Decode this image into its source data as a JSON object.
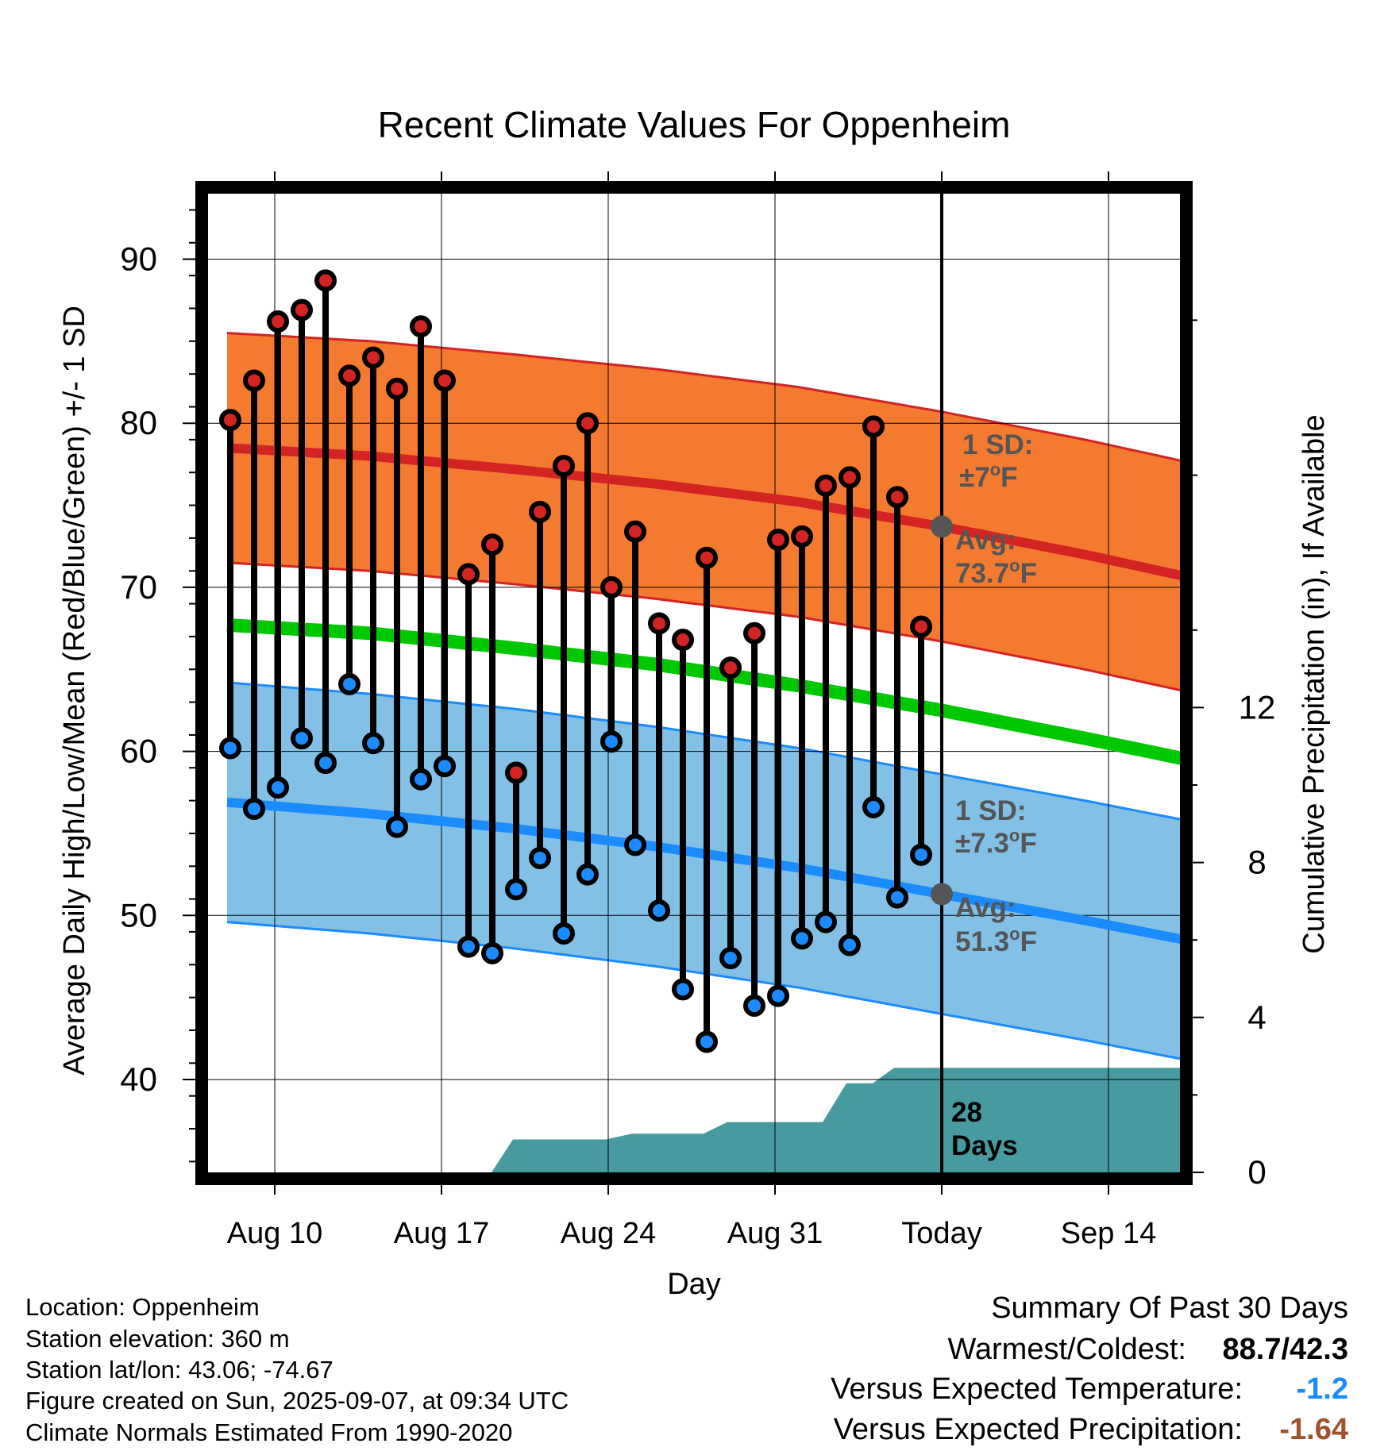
{
  "chart_data": {
    "type": "line",
    "title": "Recent Climate Values For Oppenheim",
    "xlabel": "Day",
    "ylabel": "Average Daily High/Low/Mean (Red/Blue/Green) +/- 1 SD",
    "y2label": "Cumulative Precipitation (in), If Available",
    "x_range_day": [
      -30,
      12
    ],
    "ylim": [
      34.5,
      94
    ],
    "y2lim": [
      0,
      25
    ],
    "grid": true,
    "x_ticks": [
      {
        "day": -28,
        "label": "Aug 10"
      },
      {
        "day": -21,
        "label": "Aug 17"
      },
      {
        "day": -14,
        "label": "Aug 24"
      },
      {
        "day": -7,
        "label": "Aug 31"
      },
      {
        "day": 0,
        "label": "Today"
      },
      {
        "day": 7,
        "label": "Sep 14"
      }
    ],
    "y_ticks": [
      40,
      50,
      60,
      70,
      80,
      90
    ],
    "y2_ticks": [
      0,
      4,
      8,
      12
    ],
    "daily": {
      "day": [
        -30,
        -29,
        -28,
        -27,
        -26,
        -25,
        -24,
        -23,
        -22,
        -21,
        -20,
        -19,
        -18,
        -17,
        -16,
        -15,
        -14,
        -13,
        -12,
        -11,
        -10,
        -9,
        -8,
        -7,
        -6,
        -5,
        -4,
        -3,
        -2,
        -1
      ],
      "high": [
        80.2,
        82.6,
        86.2,
        86.9,
        88.7,
        82.9,
        84.0,
        82.1,
        85.9,
        82.6,
        70.8,
        72.6,
        58.7,
        74.6,
        77.4,
        80.0,
        70.0,
        73.4,
        67.8,
        66.8,
        71.8,
        65.1,
        67.2,
        72.9,
        73.1,
        76.2,
        76.7,
        79.8,
        75.5,
        67.6
      ],
      "low": [
        60.2,
        56.5,
        57.8,
        60.8,
        59.3,
        64.1,
        60.5,
        55.4,
        58.3,
        59.1,
        48.1,
        47.7,
        51.6,
        53.5,
        48.9,
        52.5,
        60.6,
        54.3,
        50.3,
        45.5,
        42.3,
        47.4,
        44.5,
        45.1,
        48.6,
        49.6,
        48.2,
        56.6,
        51.1,
        53.7
      ]
    },
    "normals": {
      "day": [
        -30,
        -24,
        -18,
        -12,
        -6,
        0,
        6,
        12
      ],
      "high_mean": [
        78.5,
        78.0,
        77.2,
        76.3,
        75.2,
        73.7,
        72.0,
        70.1
      ],
      "high_sd": 7,
      "low_mean": [
        56.9,
        56.2,
        55.3,
        54.2,
        52.9,
        51.3,
        49.7,
        48.0
      ],
      "low_sd": 7.3,
      "mean": [
        67.7,
        67.2,
        66.3,
        65.3,
        64.0,
        62.5,
        60.8,
        59.0
      ]
    },
    "precip_cum": {
      "day": [
        -18.9,
        -18,
        -14.1,
        -13,
        -10,
        -9,
        -5,
        -4,
        -2.9,
        -2,
        12
      ],
      "value": [
        0,
        0.85,
        0.85,
        1.0,
        1.0,
        1.3,
        1.3,
        2.3,
        2.3,
        2.7,
        2.7
      ]
    },
    "annotations": {
      "high_sd_label": "1 SD:",
      "high_sd_value": "±7",
      "high_avg_label": "Avg:",
      "high_avg_value": "73.7",
      "low_sd_label": "1 SD:",
      "low_sd_value": "±7.3",
      "low_avg_label": "Avg:",
      "low_avg_value": "51.3",
      "degree_o": "o",
      "unit_f": "F",
      "days_number": "28",
      "days_word": "Days"
    },
    "colors": {
      "high_band": "#f47a30",
      "high_line": "#d42323",
      "low_band": "#82c0e6",
      "low_line": "#1a8cff",
      "mean_line": "#00c800",
      "precip": "#469aa0",
      "high_dot": "#d42323",
      "low_dot": "#1a8cff",
      "annotation": "#555555"
    }
  },
  "footer": {
    "location": "Location: Oppenheim",
    "elevation": "Station elevation: 360 m",
    "latlon": "Station lat/lon: 43.06; -74.67",
    "created": "Figure created on Sun, 2025-09-07, at 09:34 UTC",
    "normals": "Climate Normals Estimated From 1990-2020"
  },
  "summary": {
    "title": "Summary Of Past 30 Days",
    "warm_label": "Warmest/Coldest:",
    "warm_value": "88.7/42.3",
    "temp_label": "Versus Expected Temperature:",
    "temp_value": "-1.2",
    "temp_color": "#1a8cff",
    "precip_label": "Versus Expected Precipitation:",
    "precip_value": "-1.64",
    "precip_color": "#a0522d"
  }
}
